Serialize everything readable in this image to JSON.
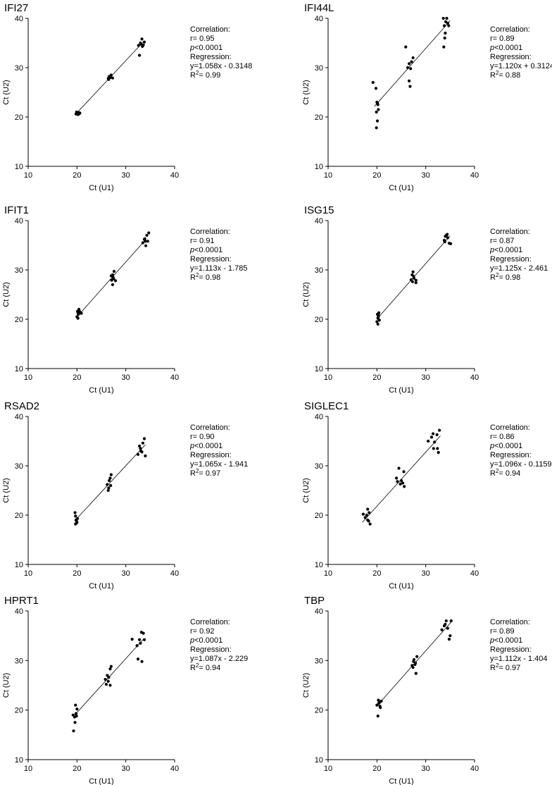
{
  "chart_data": [
    {
      "type": "scatter",
      "title": "IFI27",
      "xlabel": "Ct (U1)",
      "ylabel": "Ct (U2)",
      "xlim": [
        10,
        40
      ],
      "ylim": [
        10,
        40
      ],
      "xticks": [
        10,
        20,
        30,
        40
      ],
      "yticks": [
        10,
        20,
        30,
        40
      ],
      "fit": {
        "slope": 1.058,
        "intercept": -0.3148,
        "x_range": [
          19.8,
          33.5
        ]
      },
      "stats": {
        "correlation_label": "Correlation:",
        "r": "r= 0.95",
        "p": "<0.0001",
        "regression_label": "Regression:",
        "equation": "y=1.058x - 0.3148",
        "r2": "= 0.99"
      },
      "points": [
        [
          19.8,
          20.6
        ],
        [
          20.0,
          20.8
        ],
        [
          20.2,
          20.5
        ],
        [
          19.9,
          21.0
        ],
        [
          20.1,
          20.7
        ],
        [
          20.3,
          20.9
        ],
        [
          20.6,
          20.8
        ],
        [
          20.4,
          20.6
        ],
        [
          26.4,
          27.8
        ],
        [
          26.6,
          28.2
        ],
        [
          26.8,
          28.0
        ],
        [
          27.0,
          28.5
        ],
        [
          26.5,
          27.6
        ],
        [
          27.3,
          27.9
        ],
        [
          26.9,
          28.3
        ],
        [
          32.6,
          34.5
        ],
        [
          33.0,
          35.0
        ],
        [
          33.3,
          35.8
        ],
        [
          33.6,
          34.6
        ],
        [
          33.8,
          35.2
        ],
        [
          32.8,
          32.5
        ],
        [
          33.4,
          34.3
        ],
        [
          33.1,
          34.8
        ]
      ]
    },
    {
      "type": "scatter",
      "title": "IFI44L",
      "xlabel": "Ct (U1)",
      "ylabel": "Ct (U2)",
      "xlim": [
        10,
        40
      ],
      "ylim": [
        10,
        40
      ],
      "xticks": [
        10,
        20,
        30,
        40
      ],
      "yticks": [
        10,
        20,
        30,
        40
      ],
      "fit": {
        "slope": 1.12,
        "intercept": 0.3124,
        "x_range": [
          19.5,
          35.0
        ]
      },
      "stats": {
        "correlation_label": "Correlation:",
        "r": "r= 0.89",
        "p": "<0.0001",
        "regression_label": "Regression:",
        "equation": "y=1.120x + 0.3124",
        "r2": "= 0.88"
      },
      "points": [
        [
          19.2,
          27.0
        ],
        [
          19.8,
          25.8
        ],
        [
          20.0,
          23.0
        ],
        [
          20.2,
          22.5
        ],
        [
          19.9,
          21.0
        ],
        [
          20.3,
          21.5
        ],
        [
          20.1,
          19.2
        ],
        [
          19.9,
          17.8
        ],
        [
          20.1,
          22.8
        ],
        [
          25.9,
          34.2
        ],
        [
          26.3,
          30.0
        ],
        [
          26.6,
          27.3
        ],
        [
          26.9,
          29.8
        ],
        [
          27.1,
          31.2
        ],
        [
          27.4,
          32.0
        ],
        [
          26.8,
          26.2
        ],
        [
          26.6,
          30.8
        ],
        [
          33.6,
          40.0
        ],
        [
          34.3,
          40.0
        ],
        [
          33.8,
          38.5
        ],
        [
          34.0,
          37.0
        ],
        [
          34.5,
          39.0
        ],
        [
          33.9,
          36.0
        ],
        [
          34.7,
          38.5
        ],
        [
          33.7,
          34.2
        ],
        [
          34.1,
          39.3
        ]
      ]
    },
    {
      "type": "scatter",
      "title": "IFIT1",
      "xlabel": "Ct (U1)",
      "ylabel": "Ct (U2)",
      "xlim": [
        10,
        40
      ],
      "ylim": [
        10,
        40
      ],
      "xticks": [
        10,
        20,
        30,
        40
      ],
      "yticks": [
        10,
        20,
        30,
        40
      ],
      "fit": {
        "slope": 1.113,
        "intercept": -1.785,
        "x_range": [
          20.0,
          34.0
        ]
      },
      "stats": {
        "correlation_label": "Correlation:",
        "r": "r= 0.91",
        "p": "<0.0001",
        "regression_label": "Regression:",
        "equation": "y=1.113x - 1.785",
        "r2": "= 0.98"
      },
      "points": [
        [
          20.0,
          20.5
        ],
        [
          20.2,
          20.2
        ],
        [
          20.3,
          21.0
        ],
        [
          20.1,
          21.6
        ],
        [
          20.4,
          22.0
        ],
        [
          20.6,
          21.5
        ],
        [
          20.9,
          21.2
        ],
        [
          20.2,
          21.3
        ],
        [
          27.0,
          28.8
        ],
        [
          27.3,
          29.0
        ],
        [
          27.5,
          28.2
        ],
        [
          27.6,
          29.7
        ],
        [
          27.1,
          27.9
        ],
        [
          27.9,
          27.8
        ],
        [
          27.3,
          27.0
        ],
        [
          27.4,
          28.5
        ],
        [
          33.5,
          35.5
        ],
        [
          34.0,
          35.8
        ],
        [
          34.3,
          37.0
        ],
        [
          34.7,
          37.5
        ],
        [
          33.8,
          36.2
        ],
        [
          34.1,
          34.9
        ],
        [
          34.5,
          35.8
        ],
        [
          33.9,
          36.3
        ]
      ]
    },
    {
      "type": "scatter",
      "title": "ISG15",
      "xlabel": "Ct (U1)",
      "ylabel": "Ct (U2)",
      "xlim": [
        10,
        40
      ],
      "ylim": [
        10,
        40
      ],
      "xticks": [
        10,
        20,
        30,
        40
      ],
      "yticks": [
        10,
        20,
        30,
        40
      ],
      "fit": {
        "slope": 1.125,
        "intercept": -2.461,
        "x_range": [
          20.0,
          35.0
        ]
      },
      "stats": {
        "correlation_label": "Correlation:",
        "r": "r= 0.87",
        "p": "<0.0001",
        "regression_label": "Regression:",
        "equation": "y=1.125x - 2.461",
        "r2": "= 0.98"
      },
      "points": [
        [
          20.0,
          19.5
        ],
        [
          20.2,
          19.0
        ],
        [
          20.3,
          20.5
        ],
        [
          20.1,
          21.0
        ],
        [
          20.4,
          21.3
        ],
        [
          20.2,
          20.2
        ],
        [
          20.5,
          19.8
        ],
        [
          20.3,
          20.8
        ],
        [
          27.0,
          28.0
        ],
        [
          27.2,
          29.0
        ],
        [
          27.4,
          29.6
        ],
        [
          27.6,
          28.3
        ],
        [
          27.3,
          27.6
        ],
        [
          28.0,
          27.9
        ],
        [
          28.0,
          27.4
        ],
        [
          27.5,
          28.7
        ],
        [
          33.8,
          36.0
        ],
        [
          34.2,
          37.0
        ],
        [
          34.5,
          36.5
        ],
        [
          34.8,
          35.4
        ],
        [
          33.9,
          35.7
        ],
        [
          34.4,
          37.2
        ],
        [
          35.1,
          35.3
        ],
        [
          34.0,
          36.8
        ]
      ]
    },
    {
      "type": "scatter",
      "title": "RSAD2",
      "xlabel": "Ct (U1)",
      "ylabel": "Ct (U2)",
      "xlim": [
        10,
        40
      ],
      "ylim": [
        10,
        40
      ],
      "xticks": [
        10,
        20,
        30,
        40
      ],
      "yticks": [
        10,
        20,
        30,
        40
      ],
      "fit": {
        "slope": 1.065,
        "intercept": -1.941,
        "x_range": [
          19.8,
          34.0
        ]
      },
      "stats": {
        "correlation_label": "Correlation:",
        "r": "r= 0.90",
        "p": "<0.0001",
        "regression_label": "Regression:",
        "equation": "y=1.065x - 1.941",
        "r2": "= 0.97"
      },
      "points": [
        [
          19.6,
          20.5
        ],
        [
          19.8,
          19.0
        ],
        [
          20.0,
          18.5
        ],
        [
          19.7,
          18.2
        ],
        [
          20.1,
          19.3
        ],
        [
          19.9,
          18.8
        ],
        [
          19.7,
          19.8
        ],
        [
          26.2,
          26.2
        ],
        [
          26.5,
          25.5
        ],
        [
          26.8,
          27.5
        ],
        [
          27.0,
          28.2
        ],
        [
          26.4,
          25.0
        ],
        [
          26.9,
          26.0
        ],
        [
          26.6,
          27.0
        ],
        [
          32.5,
          32.3
        ],
        [
          33.0,
          33.5
        ],
        [
          33.5,
          34.6
        ],
        [
          33.8,
          35.5
        ],
        [
          32.8,
          34.0
        ],
        [
          33.3,
          32.8
        ],
        [
          34.0,
          32.0
        ],
        [
          33.1,
          33.0
        ]
      ]
    },
    {
      "type": "scatter",
      "title": "SIGLEC1",
      "xlabel": "Ct (U1)",
      "ylabel": "Ct (U2)",
      "xlim": [
        10,
        40
      ],
      "ylim": [
        10,
        40
      ],
      "xticks": [
        10,
        20,
        30,
        40
      ],
      "yticks": [
        10,
        20,
        30,
        40
      ],
      "fit": {
        "slope": 1.096,
        "intercept": -0.1159,
        "x_range": [
          17.0,
          33.0
        ]
      },
      "stats": {
        "correlation_label": "Correlation:",
        "r": "r= 0.86",
        "p": "<0.0001",
        "regression_label": "Regression:",
        "equation": "y=1.096x - 0.1159",
        "r2": "= 0.94"
      },
      "points": [
        [
          17.2,
          20.2
        ],
        [
          17.6,
          19.5
        ],
        [
          18.1,
          21.2
        ],
        [
          18.4,
          20.5
        ],
        [
          18.1,
          19.0
        ],
        [
          18.6,
          18.2
        ],
        [
          17.9,
          20.0
        ],
        [
          18.3,
          18.8
        ],
        [
          24.0,
          27.5
        ],
        [
          24.5,
          29.5
        ],
        [
          25.0,
          27.0
        ],
        [
          25.3,
          26.5
        ],
        [
          25.5,
          28.8
        ],
        [
          24.2,
          26.8
        ],
        [
          25.6,
          25.8
        ],
        [
          24.8,
          26.3
        ],
        [
          30.5,
          35.0
        ],
        [
          31.2,
          35.8
        ],
        [
          31.5,
          36.5
        ],
        [
          32.3,
          36.3
        ],
        [
          32.8,
          37.2
        ],
        [
          31.8,
          34.8
        ],
        [
          32.4,
          33.5
        ],
        [
          32.6,
          32.7
        ],
        [
          31.6,
          33.5
        ]
      ]
    },
    {
      "type": "scatter",
      "title": "HPRT1",
      "xlabel": "Ct (U1)",
      "ylabel": "Ct (U2)",
      "xlim": [
        10,
        40
      ],
      "ylim": [
        10,
        40
      ],
      "xticks": [
        10,
        20,
        30,
        40
      ],
      "yticks": [
        10,
        20,
        30,
        40
      ],
      "fit": {
        "slope": 1.087,
        "intercept": -2.229,
        "x_range": [
          19.5,
          33.5
        ]
      },
      "stats": {
        "correlation_label": "Correlation:",
        "r": "r= 0.92",
        "p": "<0.0001",
        "regression_label": "Regression:",
        "equation": "y=1.087x - 2.229",
        "r2": "= 0.94"
      },
      "points": [
        [
          19.2,
          19.0
        ],
        [
          19.5,
          18.6
        ],
        [
          19.7,
          21.0
        ],
        [
          19.6,
          17.5
        ],
        [
          19.3,
          15.8
        ],
        [
          19.8,
          19.3
        ],
        [
          20.0,
          20.2
        ],
        [
          19.9,
          18.8
        ],
        [
          25.8,
          26.2
        ],
        [
          26.2,
          27.0
        ],
        [
          26.5,
          26.6
        ],
        [
          26.8,
          28.3
        ],
        [
          27.0,
          28.8
        ],
        [
          26.0,
          25.2
        ],
        [
          26.8,
          25.0
        ],
        [
          26.4,
          25.8
        ],
        [
          31.3,
          34.3
        ],
        [
          32.3,
          33.0
        ],
        [
          32.8,
          34.2
        ],
        [
          33.2,
          35.7
        ],
        [
          33.6,
          35.5
        ],
        [
          32.5,
          30.3
        ],
        [
          33.3,
          29.8
        ],
        [
          33.0,
          33.5
        ],
        [
          33.8,
          34.2
        ]
      ]
    },
    {
      "type": "scatter",
      "title": "TBP",
      "xlabel": "Ct (U1)",
      "ylabel": "Ct (U2)",
      "xlim": [
        10,
        40
      ],
      "ylim": [
        10,
        40
      ],
      "xticks": [
        10,
        20,
        30,
        40
      ],
      "yticks": [
        10,
        20,
        30,
        40
      ],
      "fit": {
        "slope": 1.112,
        "intercept": -1.404,
        "x_range": [
          20.0,
          35.5
        ]
      },
      "stats": {
        "correlation_label": "Correlation:",
        "r": "r= 0.89",
        "p": "<0.0001",
        "regression_label": "Regression:",
        "equation": "y=1.112x - 1.404",
        "r2": "= 0.97"
      },
      "points": [
        [
          20.0,
          21.0
        ],
        [
          20.3,
          22.0
        ],
        [
          20.5,
          21.5
        ],
        [
          20.7,
          20.5
        ],
        [
          20.2,
          18.8
        ],
        [
          20.6,
          20.8
        ],
        [
          20.9,
          21.8
        ],
        [
          20.4,
          21.4
        ],
        [
          27.2,
          29.0
        ],
        [
          27.5,
          29.8
        ],
        [
          27.8,
          29.2
        ],
        [
          28.0,
          27.4
        ],
        [
          28.2,
          30.8
        ],
        [
          27.4,
          28.6
        ],
        [
          27.9,
          29.5
        ],
        [
          27.6,
          30.2
        ],
        [
          33.3,
          36.2
        ],
        [
          33.8,
          37.0
        ],
        [
          34.2,
          38.0
        ],
        [
          34.5,
          36.5
        ],
        [
          34.8,
          34.3
        ],
        [
          35.2,
          38.0
        ],
        [
          34.0,
          37.3
        ],
        [
          35.0,
          35.0
        ]
      ]
    }
  ]
}
